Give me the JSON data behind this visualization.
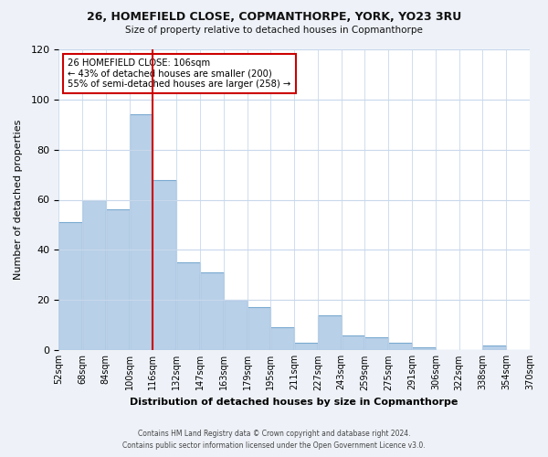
{
  "title": "26, HOMEFIELD CLOSE, COPMANTHORPE, YORK, YO23 3RU",
  "subtitle": "Size of property relative to detached houses in Copmanthorpe",
  "xlabel": "Distribution of detached houses by size in Copmanthorpe",
  "ylabel": "Number of detached properties",
  "footer_line1": "Contains HM Land Registry data © Crown copyright and database right 2024.",
  "footer_line2": "Contains public sector information licensed under the Open Government Licence v3.0.",
  "bin_labels": [
    "52sqm",
    "68sqm",
    "84sqm",
    "100sqm",
    "116sqm",
    "132sqm",
    "147sqm",
    "163sqm",
    "179sqm",
    "195sqm",
    "211sqm",
    "227sqm",
    "243sqm",
    "259sqm",
    "275sqm",
    "291sqm",
    "306sqm",
    "322sqm",
    "338sqm",
    "354sqm",
    "370sqm"
  ],
  "counts": [
    51,
    60,
    56,
    94,
    68,
    35,
    31,
    20,
    17,
    9,
    3,
    14,
    6,
    5,
    3,
    1,
    0,
    0,
    2,
    0
  ],
  "bar_color": "#b8d0e8",
  "bar_edge_color": "#7aaad0",
  "vline_position": 4,
  "vline_color": "#cc0000",
  "annotation_title": "26 HOMEFIELD CLOSE: 106sqm",
  "annotation_line1": "← 43% of detached houses are smaller (200)",
  "annotation_line2": "55% of semi-detached houses are larger (258) →",
  "annotation_box_color": "#ffffff",
  "annotation_box_edge": "#cc0000",
  "ylim": [
    0,
    120
  ],
  "yticks": [
    0,
    20,
    40,
    60,
    80,
    100,
    120
  ],
  "background_color": "#eef2f8",
  "plot_bg_color": "#ffffff",
  "grid_color": "#c8d8ec"
}
